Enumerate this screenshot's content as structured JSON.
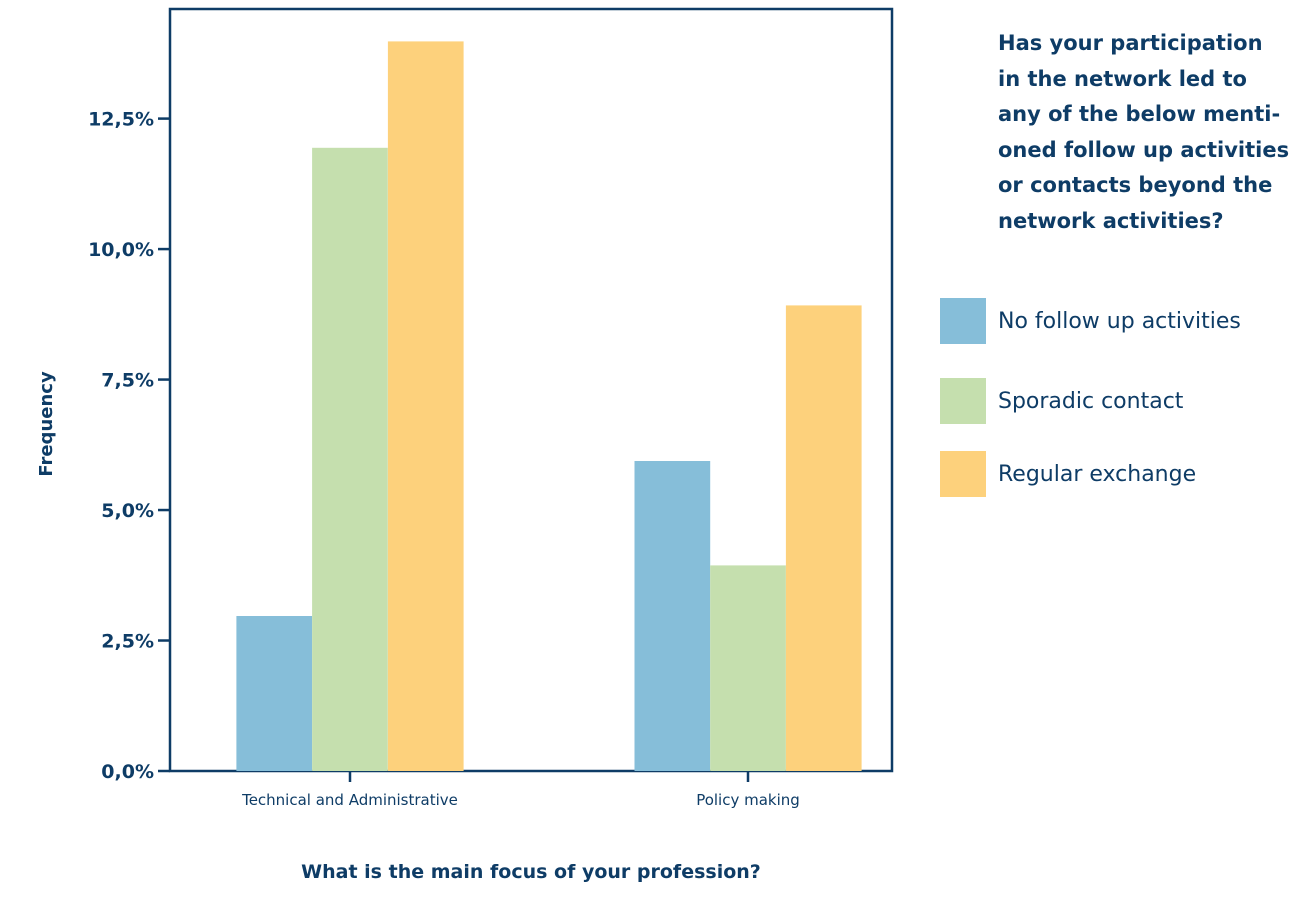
{
  "chart_data": {
    "type": "bar",
    "categories": [
      "Technical and Administrative",
      "Policy making"
    ],
    "series": [
      {
        "name": "No follow up activities",
        "values": [
          2.97,
          5.94
        ],
        "color": "#86bed9"
      },
      {
        "name": "Sporadic contact",
        "values": [
          11.94,
          3.94
        ],
        "color": "#c5dfae"
      },
      {
        "name": "Regular exchange",
        "values": [
          13.98,
          8.92
        ],
        "color": "#fdd17c"
      }
    ],
    "ylim": [
      0,
      14.6
    ],
    "yticks": [
      0,
      2.5,
      5,
      7.5,
      10,
      12.5
    ],
    "ytick_labels": [
      "0,0%",
      "2,5%",
      "5,0%",
      "7,5%",
      "10,0%",
      "12,5%"
    ],
    "ylabel": "Frequency",
    "xlabel": "What is the main focus of your profession?",
    "legend_title": "Has your participation\nin the network led to\nany of the below menti-\noned follow up activities\nor contacts beyond the\nnetwork activities?",
    "legend_position": "right",
    "grid": false
  },
  "colors": {
    "text": "#0e3c66",
    "axis": "#0e3c66"
  }
}
